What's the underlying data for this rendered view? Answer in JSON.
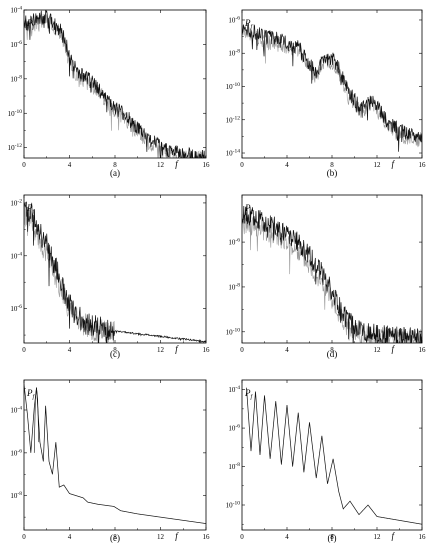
{
  "chart_data": [
    {
      "id": "a",
      "type": "line",
      "caption": "(a)",
      "xlabel": "f",
      "ylabel": "P",
      "ylabel_sub": "f",
      "log_y": true,
      "xlim": [
        0,
        16
      ],
      "ylim_exp": [
        -12.6,
        -4
      ],
      "xticks": [
        "0",
        "4",
        "8",
        "12",
        "16"
      ],
      "yticks": [
        {
          "exp": -4,
          "label": "10",
          "sup": "-4"
        },
        {
          "exp": -6,
          "label": "10",
          "sup": "-6"
        },
        {
          "exp": -8,
          "label": "10",
          "sup": "-8"
        },
        {
          "exp": -10,
          "label": "10",
          "sup": "-10"
        },
        {
          "exp": -12,
          "label": "10",
          "sup": "-12"
        }
      ],
      "series": [
        {
          "role": "primary",
          "color": "#111111",
          "x": [
            0,
            1,
            2,
            2.5,
            3,
            3.5,
            4,
            4.5,
            5,
            5.5,
            6,
            7,
            8,
            9,
            10,
            11,
            12,
            13,
            14,
            15,
            16
          ],
          "y_exp": [
            -4.8,
            -4.6,
            -4.3,
            -4.6,
            -5.0,
            -5.6,
            -6.6,
            -7.4,
            -7.8,
            -8.0,
            -8.2,
            -8.9,
            -9.7,
            -10.2,
            -10.9,
            -11.5,
            -12.0,
            -12.3,
            -12.4,
            -12.5,
            -12.5
          ]
        },
        {
          "role": "secondary",
          "color": "#9a9a9a",
          "x": [
            0,
            1,
            2,
            2.5,
            3,
            3.5,
            4,
            4.5,
            5,
            5.5,
            6,
            7,
            8,
            9,
            10,
            11,
            12,
            13,
            14,
            15,
            16
          ],
          "y_exp": [
            -5.0,
            -4.8,
            -4.5,
            -4.8,
            -5.2,
            -5.8,
            -6.8,
            -7.6,
            -8.0,
            -8.2,
            -8.4,
            -9.1,
            -9.9,
            -10.4,
            -11.1,
            -11.7,
            -12.1,
            -12.4,
            -12.5,
            -12.6,
            -12.6
          ]
        }
      ]
    },
    {
      "id": "b",
      "type": "line",
      "caption": "(b)",
      "xlabel": "f",
      "ylabel": "P",
      "ylabel_sub": "f",
      "log_y": true,
      "xlim": [
        0,
        16
      ],
      "ylim_exp": [
        -14.3,
        -5.4
      ],
      "xticks": [
        "0",
        "4",
        "8",
        "12",
        "16"
      ],
      "yticks": [
        {
          "exp": -6,
          "label": "10",
          "sup": "-6"
        },
        {
          "exp": -8,
          "label": "10",
          "sup": "-8"
        },
        {
          "exp": -10,
          "label": "10",
          "sup": "-10"
        },
        {
          "exp": -12,
          "label": "10",
          "sup": "-12"
        },
        {
          "exp": -14,
          "label": "10",
          "sup": "-14"
        }
      ],
      "series": [
        {
          "role": "primary",
          "color": "#111111",
          "x": [
            0,
            1,
            2,
            3,
            4,
            5,
            5.5,
            6,
            6.5,
            7,
            7.5,
            8,
            8.5,
            9,
            9.5,
            10,
            10.5,
            11,
            11.5,
            12,
            12.5,
            13,
            14,
            15,
            16
          ],
          "y_exp": [
            -6.4,
            -6.7,
            -7.0,
            -7.1,
            -7.4,
            -7.6,
            -8.1,
            -8.6,
            -9.2,
            -8.7,
            -8.3,
            -8.3,
            -8.7,
            -9.6,
            -10.4,
            -10.8,
            -11.2,
            -11.0,
            -10.8,
            -11.1,
            -11.7,
            -12.2,
            -12.6,
            -12.9,
            -13.0
          ]
        },
        {
          "role": "secondary",
          "color": "#9a9a9a",
          "x": [
            0,
            1,
            2,
            3,
            4,
            5,
            5.5,
            6,
            6.5,
            7,
            7.5,
            8,
            8.5,
            9,
            9.5,
            10,
            10.5,
            11,
            11.5,
            12,
            12.5,
            13,
            14,
            15,
            16
          ],
          "y_exp": [
            -6.7,
            -7.0,
            -7.3,
            -7.4,
            -7.6,
            -7.9,
            -8.3,
            -8.8,
            -9.4,
            -8.9,
            -8.6,
            -8.6,
            -9.0,
            -9.8,
            -10.7,
            -11.1,
            -11.4,
            -11.3,
            -11.1,
            -11.4,
            -12.0,
            -12.5,
            -12.9,
            -13.2,
            -13.2
          ]
        }
      ]
    },
    {
      "id": "c",
      "type": "line",
      "caption": "(c)",
      "xlabel": "f",
      "ylabel": "P",
      "ylabel_sub": "f",
      "log_y": true,
      "xlim": [
        0,
        16
      ],
      "ylim_exp": [
        -7.3,
        -1.7
      ],
      "xticks": [
        "0",
        "4",
        "8",
        "12",
        "16"
      ],
      "yticks": [
        {
          "exp": -2,
          "label": "10",
          "sup": "-2"
        },
        {
          "exp": -4,
          "label": "10",
          "sup": "-4"
        },
        {
          "exp": -6,
          "label": "10",
          "sup": "-6"
        }
      ],
      "series": [
        {
          "role": "primary",
          "color": "#111111",
          "x": [
            0,
            0.5,
            1,
            1.5,
            2,
            2.5,
            3,
            3.5,
            4,
            4.5,
            5,
            5.5,
            6,
            6.5,
            7,
            7.5,
            8,
            10,
            12,
            14,
            16
          ],
          "y_exp": [
            -2.1,
            -2.3,
            -2.7,
            -3.2,
            -3.6,
            -4.1,
            -4.7,
            -5.3,
            -5.8,
            -6.2,
            -6.4,
            -6.55,
            -6.65,
            -6.7,
            -6.75,
            -6.8,
            -6.85,
            -6.95,
            -7.05,
            -7.15,
            -7.25
          ]
        },
        {
          "role": "secondary",
          "color": "#9a9a9a",
          "x": [
            0,
            0.5,
            1,
            1.5,
            2,
            2.5,
            3,
            3.5,
            4,
            4.5,
            5,
            5.5,
            6,
            6.5,
            7,
            7.5,
            8
          ],
          "y_exp": [
            -2.4,
            -2.6,
            -3.0,
            -3.5,
            -3.9,
            -4.4,
            -5.0,
            -5.5,
            -6.0,
            -6.35,
            -6.5,
            -6.65,
            -6.75,
            -6.8,
            -6.85,
            -6.9,
            -6.9
          ]
        }
      ]
    },
    {
      "id": "d",
      "type": "line",
      "caption": "(d)",
      "xlabel": "f",
      "ylabel": "P",
      "ylabel_sub": "f",
      "log_y": true,
      "xlim": [
        0,
        16
      ],
      "ylim_exp": [
        -10.5,
        -3.9
      ],
      "xticks": [
        "0",
        "4",
        "8",
        "12",
        "16"
      ],
      "yticks": [
        {
          "exp": -6,
          "label": "10",
          "sup": "-6"
        },
        {
          "exp": -8,
          "label": "10",
          "sup": "-8"
        },
        {
          "exp": -10,
          "label": "10",
          "sup": "-10"
        }
      ],
      "series": [
        {
          "role": "primary",
          "color": "#111111",
          "x": [
            0,
            1,
            2,
            3,
            4,
            5,
            6,
            7,
            8,
            9,
            10,
            11,
            12,
            13,
            14,
            15,
            16
          ],
          "y_exp": [
            -4.8,
            -4.9,
            -5.1,
            -5.3,
            -5.6,
            -6.0,
            -6.6,
            -7.3,
            -8.2,
            -9.2,
            -9.8,
            -10.0,
            -10.1,
            -10.15,
            -10.2,
            -10.25,
            -10.3
          ]
        },
        {
          "role": "secondary",
          "color": "#9a9a9a",
          "x": [
            0,
            1,
            2,
            3,
            4,
            5,
            6,
            7,
            8,
            9,
            10,
            11,
            12,
            13,
            14,
            15,
            16
          ],
          "y_exp": [
            -5.2,
            -5.3,
            -5.5,
            -5.7,
            -6.0,
            -6.4,
            -7.0,
            -7.7,
            -8.6,
            -9.5,
            -10.0,
            -10.15,
            -10.2,
            -10.25,
            -10.3,
            -10.3,
            -10.35
          ]
        }
      ]
    },
    {
      "id": "e",
      "type": "line",
      "caption": "(e)",
      "xlabel": "f",
      "ylabel": "P",
      "ylabel_sub": "f",
      "log_y": true,
      "xlim": [
        0,
        16
      ],
      "ylim_exp": [
        -9.6,
        -2.6
      ],
      "xticks": [
        "0",
        "4",
        "8",
        "12",
        "16"
      ],
      "yticks": [
        {
          "exp": -4,
          "label": "10",
          "sup": "-4"
        },
        {
          "exp": -6,
          "label": "10",
          "sup": "-6"
        },
        {
          "exp": -8,
          "label": "10",
          "sup": "-8"
        }
      ],
      "series": [
        {
          "role": "primary",
          "color": "#111111",
          "x": [
            0,
            0.3,
            0.6,
            0.9,
            1.1,
            1.4,
            1.7,
            1.9,
            2.2,
            2.5,
            2.8,
            3.1,
            3.5,
            4.0,
            4.6,
            5.2,
            5.6,
            6.5,
            7.9,
            8.5,
            10,
            12,
            14,
            16
          ],
          "y_exp": [
            -2.8,
            -4.2,
            -6.0,
            -3.9,
            -2.95,
            -5.5,
            -6.4,
            -3.8,
            -6.4,
            -7.0,
            -5.5,
            -7.6,
            -7.5,
            -7.9,
            -8.0,
            -8.1,
            -8.3,
            -8.4,
            -8.5,
            -8.7,
            -8.85,
            -9.0,
            -9.15,
            -9.3
          ]
        },
        {
          "role": "secondary",
          "color": "#111111",
          "x": [
            0.9,
            1.0,
            1.1,
            1.2,
            1.3
          ],
          "y_exp": [
            -6.0,
            -3.5,
            -2.95,
            -3.5,
            -5.5
          ]
        }
      ]
    },
    {
      "id": "f",
      "type": "line",
      "caption": "(f)",
      "xlabel": "f",
      "ylabel": "P",
      "ylabel_sub": "f",
      "log_y": true,
      "xlim": [
        0,
        16
      ],
      "ylim_exp": [
        -11.3,
        -3.5
      ],
      "xticks": [
        "0",
        "4",
        "8",
        "12",
        "16"
      ],
      "yticks": [
        {
          "exp": -4,
          "label": "10",
          "sup": "-4"
        },
        {
          "exp": -6,
          "label": "10",
          "sup": "-6"
        },
        {
          "exp": -8,
          "label": "10",
          "sup": "-8"
        },
        {
          "exp": -10,
          "label": "10",
          "sup": "-10"
        }
      ],
      "series": [
        {
          "role": "primary",
          "color": "#111111",
          "x": [
            0.4,
            0.8,
            1.2,
            1.6,
            2.0,
            2.5,
            3.0,
            3.5,
            4.0,
            4.5,
            5.0,
            5.5,
            6.0,
            6.6,
            7.1,
            7.6,
            8.1,
            8.6,
            9.0,
            9.6,
            10.4,
            11.2,
            12.0,
            13,
            14,
            15,
            16
          ],
          "y_exp": [
            -3.9,
            -7.2,
            -4.1,
            -7.4,
            -4.3,
            -7.6,
            -4.6,
            -7.9,
            -4.8,
            -8.0,
            -5.2,
            -8.3,
            -5.7,
            -8.6,
            -6.4,
            -8.9,
            -7.6,
            -9.3,
            -10.2,
            -9.8,
            -10.5,
            -10.0,
            -10.6,
            -10.7,
            -10.8,
            -10.9,
            -11.0
          ]
        }
      ]
    }
  ]
}
